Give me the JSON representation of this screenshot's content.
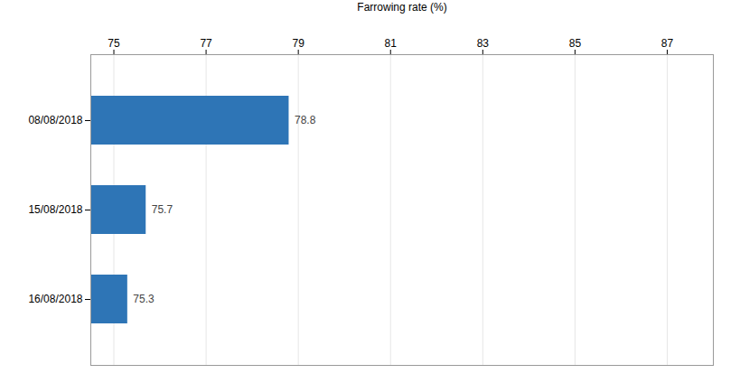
{
  "chart_data": {
    "type": "bar",
    "orientation": "horizontal",
    "xlabel": "Farrowing rate (%)",
    "categories": [
      "08/08/2018",
      "15/08/2018",
      "16/08/2018"
    ],
    "values": [
      78.8,
      75.7,
      75.3
    ],
    "color": "#2E75B6",
    "xlim": [
      74.5,
      88
    ],
    "xticks": [
      75,
      77,
      79,
      81,
      83,
      85,
      87
    ],
    "grid": true,
    "data_labels": true
  }
}
